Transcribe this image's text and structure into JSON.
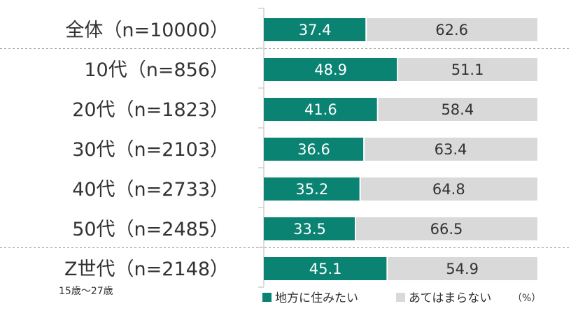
{
  "chart_data": {
    "type": "bar",
    "orientation": "horizontal",
    "stacked": true,
    "percent_scale": true,
    "xlim": [
      0,
      100
    ],
    "unit": "（%）",
    "categories": [
      "全体（n=10000）",
      "10代（n=856）",
      "20代（n=1823）",
      "30代（n=2103）",
      "40代（n=2733）",
      "50代（n=2485）",
      "Z世代（n=2148）"
    ],
    "category_note": "15歳～27歳",
    "series": [
      {
        "name": "地方に住みたい",
        "color": "#0b8372",
        "label_color": "#ffffff",
        "values": [
          37.4,
          48.9,
          41.6,
          36.6,
          35.2,
          33.5,
          45.1
        ]
      },
      {
        "name": "あてはまらない",
        "color": "#d9d9d9",
        "label_color": "#333333",
        "values": [
          62.6,
          51.1,
          58.4,
          63.4,
          64.8,
          66.5,
          54.9
        ]
      }
    ],
    "separators_after_rows": [
      0,
      5
    ],
    "legend": "bottom"
  }
}
